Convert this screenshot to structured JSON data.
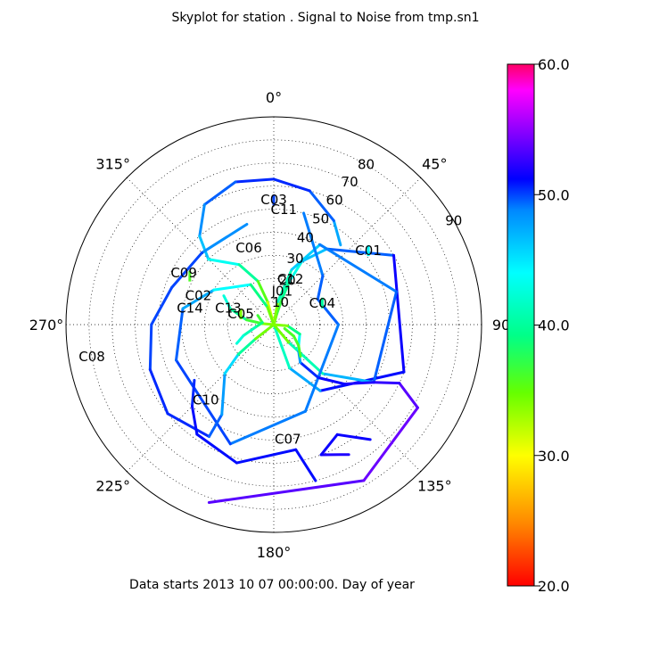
{
  "title": "Skyplot for station .   Signal to Noise from tmp.sn1",
  "subtitle": "Data starts 2013 10 07 00:00:00.  Day of year",
  "chart_data": {
    "type": "scatter",
    "projection": "polar-skyplot",
    "theta_ticks": [
      {
        "label": "0°",
        "az": 0
      },
      {
        "label": "45°",
        "az": 45
      },
      {
        "label": "90",
        "az": 90
      },
      {
        "label": "135°",
        "az": 135
      },
      {
        "label": "180°",
        "az": 180
      },
      {
        "label": "225°",
        "az": 225
      },
      {
        "label": "270°",
        "az": 270
      },
      {
        "label": "315°",
        "az": 315
      }
    ],
    "r_ticks": [
      {
        "label": "10",
        "value": 10
      },
      {
        "label": "20",
        "value": 20
      },
      {
        "label": "30",
        "value": 30
      },
      {
        "label": "40",
        "value": 40
      },
      {
        "label": "50",
        "value": 50
      },
      {
        "label": "60",
        "value": 60
      },
      {
        "label": "70",
        "value": 70
      },
      {
        "label": "80",
        "value": 80
      },
      {
        "label": "90",
        "value": 90
      }
    ],
    "colorbar": {
      "range": [
        20.0,
        60.0
      ],
      "tick_labels": [
        "20.0",
        "30.0",
        "40.0",
        "50.0",
        "60.0"
      ],
      "tick_values": [
        20,
        30,
        40,
        50,
        60
      ]
    },
    "satellites": [
      {
        "name": "J01",
        "track": [
          [
            14,
            0,
            34
          ],
          [
            16,
            5,
            36
          ],
          [
            18,
            12,
            38
          ],
          [
            20,
            20,
            41
          ],
          [
            24,
            30,
            45
          ],
          [
            35,
            40,
            48
          ],
          [
            60,
            60,
            51
          ],
          [
            110,
            60,
            52
          ],
          [
            145,
            35,
            50
          ],
          [
            160,
            20,
            45
          ],
          [
            165,
            0,
            38
          ]
        ]
      },
      {
        "name": "C12",
        "track": [
          [
            5,
            0,
            30
          ],
          [
            10,
            10,
            38
          ],
          [
            18,
            25,
            44
          ],
          [
            30,
            40,
            48
          ],
          [
            75,
            55,
            50
          ],
          [
            120,
            50,
            49
          ],
          [
            135,
            30,
            45
          ],
          [
            140,
            10,
            37
          ],
          [
            142,
            0,
            32
          ]
        ]
      },
      {
        "name": "C11",
        "track": [
          [
            40,
            45,
            46
          ],
          [
            30,
            52,
            49
          ],
          [
            15,
            60,
            50
          ],
          [
            0,
            63,
            51
          ],
          [
            345,
            64,
            50
          ],
          [
            330,
            60,
            49
          ],
          [
            320,
            50,
            48
          ],
          [
            315,
            40,
            45
          ],
          [
            330,
            30,
            42
          ],
          [
            340,
            20,
            38
          ],
          [
            345,
            10,
            33
          ],
          [
            347,
            0,
            30
          ]
        ]
      },
      {
        "name": "C06",
        "track": [
          [
            15,
            50,
            48
          ],
          [
            45,
            30,
            50
          ],
          [
            60,
            22,
            49
          ],
          [
            90,
            28,
            50
          ],
          [
            160,
            40,
            48
          ],
          [
            200,
            55,
            50
          ],
          [
            250,
            45,
            50
          ],
          [
            280,
            40,
            49
          ],
          [
            300,
            30,
            46
          ],
          [
            330,
            20,
            42
          ],
          [
            340,
            8,
            36
          ],
          [
            342,
            0,
            33
          ]
        ]
      },
      {
        "name": "C09",
        "track": [
          [
            345,
            45,
            47
          ],
          [
            315,
            44,
            50
          ],
          [
            290,
            47,
            50
          ],
          [
            270,
            53,
            50
          ],
          [
            250,
            57,
            50
          ],
          [
            230,
            60,
            51
          ],
          [
            210,
            56,
            50
          ],
          [
            210,
            45,
            49
          ],
          [
            225,
            30,
            47
          ],
          [
            230,
            20,
            44
          ],
          [
            232,
            10,
            36
          ],
          [
            232,
            0,
            33
          ]
        ]
      },
      {
        "name": "C14",
        "track": [
          [
            300,
            25,
            43
          ],
          [
            290,
            20,
            42
          ],
          [
            280,
            12,
            38
          ],
          [
            275,
            5,
            35
          ],
          [
            278,
            0,
            33
          ]
        ]
      },
      {
        "name": "C13",
        "track": [
          [
            300,
            8,
            35
          ],
          [
            280,
            5,
            38
          ],
          [
            262,
            8,
            40
          ],
          [
            250,
            14,
            42
          ],
          [
            243,
            18,
            43
          ]
        ]
      },
      {
        "name": "C05",
        "track": [
          [
            288,
            15,
            34
          ]
        ]
      },
      {
        "name": "C02",
        "track": [
          [
            300,
            42,
            36
          ]
        ]
      },
      {
        "name": "C03",
        "track": [
          [
            0,
            54,
            50
          ]
        ]
      },
      {
        "name": "C01",
        "track": [
          [
            52,
            52,
            44
          ]
        ]
      },
      {
        "name": "C04",
        "track": [
          [
            66,
            23,
            40
          ]
        ]
      },
      {
        "name": "C08",
        "track": [
          [
            200,
            82,
            53
          ],
          [
            150,
            78,
            54
          ],
          [
            120,
            72,
            54
          ],
          [
            115,
            60,
            53
          ],
          [
            120,
            50,
            52
          ],
          [
            130,
            40,
            52
          ],
          [
            140,
            30,
            51
          ],
          [
            145,
            20,
            50
          ],
          [
            135,
            15,
            46
          ],
          [
            110,
            12,
            42
          ],
          [
            95,
            6,
            36
          ],
          [
            90,
            0,
            32
          ]
        ]
      },
      {
        "name": "C07",
        "track": [
          [
            150,
            65,
            52
          ],
          [
            160,
            60,
            52
          ],
          [
            150,
            55,
            51
          ],
          [
            140,
            65,
            52
          ]
        ]
      },
      {
        "name": "C10",
        "track": [
          [
            235,
            42,
            50
          ],
          [
            225,
            50,
            51
          ],
          [
            215,
            58,
            51
          ],
          [
            195,
            62,
            51
          ],
          [
            170,
            55,
            51
          ],
          [
            165,
            70,
            51
          ]
        ]
      },
      {
        "name": "",
        "track": [
          [
            110,
            5,
            36
          ],
          [
            120,
            10,
            36
          ],
          [
            130,
            14,
            36
          ],
          [
            140,
            18,
            36
          ]
        ]
      }
    ],
    "labels": [
      {
        "text": "J01",
        "az": 14,
        "el": 15
      },
      {
        "text": "10",
        "az": 17,
        "el": 10
      },
      {
        "text": "C12",
        "az": 20,
        "el": 21
      },
      {
        "text": "20",
        "az": 17,
        "el": 20
      },
      {
        "text": "30",
        "az": 18,
        "el": 30
      },
      {
        "text": "40",
        "az": 20,
        "el": 40
      },
      {
        "text": "50",
        "az": 24,
        "el": 50
      },
      {
        "text": "60",
        "az": 26,
        "el": 60
      },
      {
        "text": "70",
        "az": 28,
        "el": 70
      },
      {
        "text": "80",
        "az": 30,
        "el": 80
      },
      {
        "text": "90",
        "az": 60,
        "el": 90
      },
      {
        "text": "C06",
        "az": 342,
        "el": 35
      },
      {
        "text": "C11",
        "az": 5,
        "el": 50
      },
      {
        "text": "C03",
        "az": 0,
        "el": 54
      },
      {
        "text": "C09",
        "az": 300,
        "el": 45
      },
      {
        "text": "C02",
        "az": 291,
        "el": 35
      },
      {
        "text": "C13",
        "az": 290,
        "el": 21
      },
      {
        "text": "C05",
        "az": 288,
        "el": 15
      },
      {
        "text": "C14",
        "az": 281,
        "el": 37
      },
      {
        "text": "C01",
        "az": 52,
        "el": 52
      },
      {
        "text": "C04",
        "az": 66,
        "el": 23
      },
      {
        "text": "C08",
        "az": 260,
        "el": 80
      },
      {
        "text": "C10",
        "az": 222,
        "el": 44
      },
      {
        "text": "C07",
        "az": 173,
        "el": 50
      }
    ]
  }
}
